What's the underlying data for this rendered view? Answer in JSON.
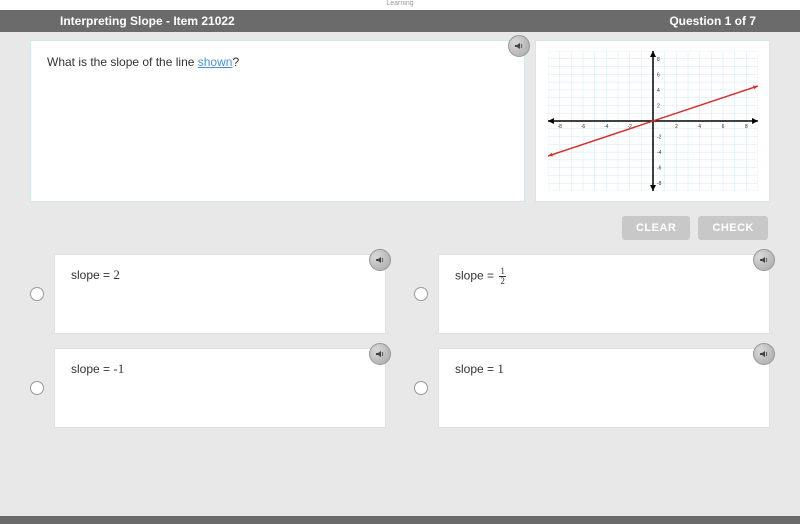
{
  "top_label": "Learning",
  "header": {
    "title": "Interpreting Slope - Item 21022",
    "progress": "Question 1 of 7"
  },
  "question": {
    "prefix": "What is the slope of the line ",
    "link_text": "shown",
    "suffix": "?"
  },
  "actions": {
    "clear": "CLEAR",
    "check": "CHECK"
  },
  "answers": [
    {
      "prefix": "slope = ",
      "value": "2",
      "type": "int"
    },
    {
      "prefix": "slope = ",
      "num": "1",
      "den": "2",
      "type": "frac"
    },
    {
      "prefix": "slope = ",
      "value": "-1",
      "type": "int"
    },
    {
      "prefix": "slope = ",
      "value": "1",
      "type": "int"
    }
  ],
  "graph": {
    "type": "line",
    "xlim": [
      -9,
      9
    ],
    "ylim": [
      -9,
      9
    ],
    "xtick_step": 2,
    "ytick_step": 2,
    "x_labels": [
      -8,
      -6,
      -4,
      -2,
      2,
      4,
      6,
      8
    ],
    "y_labels": [
      -8,
      -6,
      -4,
      -2,
      2,
      4,
      6,
      8
    ],
    "grid_color": "#cfe8f0",
    "axis_color": "#000000",
    "background_color": "#ffffff",
    "line_color": "#d92f2f",
    "line_width": 1.5,
    "line_points": [
      [
        -9,
        -4.5
      ],
      [
        9,
        4.5
      ]
    ],
    "tick_fontsize": 5,
    "grid_minor": true
  }
}
